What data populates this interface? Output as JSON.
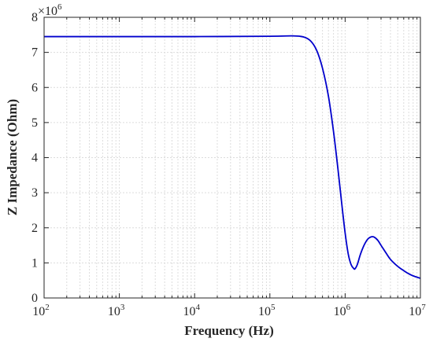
{
  "chart_data": {
    "type": "line",
    "title": "",
    "xlabel": "Frequency (Hz)",
    "ylabel": "Z Impedance (Ohm)",
    "x_scale": "log",
    "xlim": [
      100,
      10000000
    ],
    "ylim": [
      0,
      8000000
    ],
    "y_multiplier_label": "×10",
    "y_multiplier_exponent": "6",
    "x_ticks": [
      {
        "base": "10",
        "exp": "2",
        "value": 100
      },
      {
        "base": "10",
        "exp": "3",
        "value": 1000
      },
      {
        "base": "10",
        "exp": "4",
        "value": 10000
      },
      {
        "base": "10",
        "exp": "5",
        "value": 100000
      },
      {
        "base": "10",
        "exp": "6",
        "value": 1000000
      },
      {
        "base": "10",
        "exp": "7",
        "value": 10000000
      }
    ],
    "y_ticks": [
      {
        "label": "0",
        "value": 0
      },
      {
        "label": "1",
        "value": 1000000
      },
      {
        "label": "2",
        "value": 2000000
      },
      {
        "label": "3",
        "value": 3000000
      },
      {
        "label": "4",
        "value": 4000000
      },
      {
        "label": "5",
        "value": 5000000
      },
      {
        "label": "6",
        "value": 6000000
      },
      {
        "label": "7",
        "value": 7000000
      },
      {
        "label": "8",
        "value": 8000000
      }
    ],
    "grid": true,
    "series": [
      {
        "color": "#0000cc",
        "x": [
          100,
          1000,
          10000,
          100000,
          200000,
          280000,
          350000,
          420000,
          500000,
          600000,
          700000,
          800000,
          900000,
          1000000,
          1100000,
          1200000,
          1300000,
          1350000,
          1450000,
          1600000,
          1800000,
          2000000,
          2200000,
          2400000,
          2700000,
          3000000,
          3500000,
          4000000,
          5000000,
          6000000,
          7000000,
          8000000,
          10000000
        ],
        "y": [
          7450000,
          7450000,
          7450000,
          7460000,
          7470000,
          7440000,
          7320000,
          7050000,
          6550000,
          5750000,
          4750000,
          3700000,
          2700000,
          1850000,
          1250000,
          950000,
          840000,
          830000,
          950000,
          1250000,
          1520000,
          1680000,
          1740000,
          1740000,
          1650000,
          1500000,
          1280000,
          1100000,
          900000,
          780000,
          690000,
          630000,
          560000
        ]
      }
    ]
  }
}
